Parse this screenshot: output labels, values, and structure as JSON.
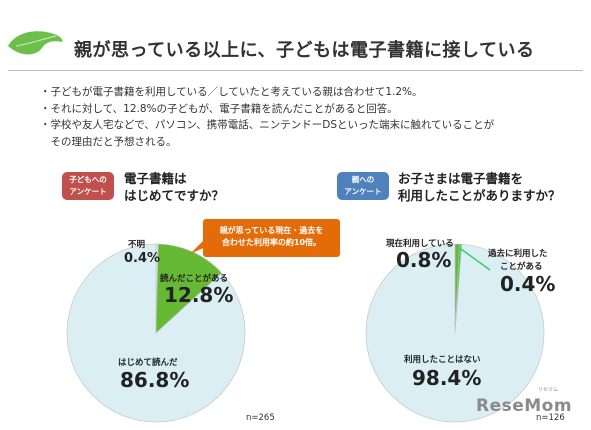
{
  "title": "親が思っている以上に、子どもは電子書籍に接している",
  "bullets": [
    "・子どもが電子書籍を利用している／していたと考えている親は合わせて1.2%。",
    "・それに対して、12.8%の子どもが、電子書籍を読んだことがあると回答。",
    "・学校や友人宅などで、パソコン、携帯電話、ニンテンドーDSといった端末に触れていることが",
    "　その理由だと予想される。"
  ],
  "colors": {
    "leaf": "#6cc04a",
    "tag_child": "#c0504d",
    "tag_parent": "#4f81bd",
    "callout": "#e36c09",
    "pie_base": "#daeef3",
    "pie_green": "#66b933",
    "pie_green2": "#33cc66",
    "pie_edge": "#bfbfbf"
  },
  "left": {
    "tag_lines": [
      "子どもへの",
      "アンケート"
    ],
    "question_lines": [
      "電子書籍は",
      "はじめてですか？"
    ],
    "labels": {
      "unknown": "不明",
      "read": "読んだことがある",
      "first": "はじめて読んだ"
    },
    "values_text": {
      "unknown": "0.4%",
      "read": "12.8%",
      "first": "86.8%"
    },
    "callout_lines": [
      "親が思っている現在・過去を",
      "合わせた利用率の約10倍。"
    ],
    "n": "n=265"
  },
  "right": {
    "tag_lines": [
      "親への",
      "アンケート"
    ],
    "question_lines": [
      "お子さまは電子書籍を",
      "利用したことがありますか？"
    ],
    "labels": {
      "current": "現在利用している",
      "past_line1": "過去に利用した",
      "past_line2": "ことがある",
      "never": "利用したことはない"
    },
    "values_text": {
      "current": "0.8%",
      "past": "0.4%",
      "never": "98.4%"
    },
    "n": "n=126"
  },
  "logo": {
    "text": "ReseMom",
    "kana": "リセマム"
  },
  "chart_data": [
    {
      "type": "pie",
      "title": "電子書籍は はじめてですか？",
      "categories": [
        "不明",
        "読んだことがある",
        "はじめて読んだ"
      ],
      "values": [
        0.4,
        12.8,
        86.8
      ],
      "n": 265
    },
    {
      "type": "pie",
      "title": "お子さまは電子書籍を 利用したことがありますか？",
      "categories": [
        "現在利用している",
        "過去に利用したことがある",
        "利用したことはない"
      ],
      "values": [
        0.8,
        0.4,
        98.4
      ],
      "n": 126
    }
  ]
}
